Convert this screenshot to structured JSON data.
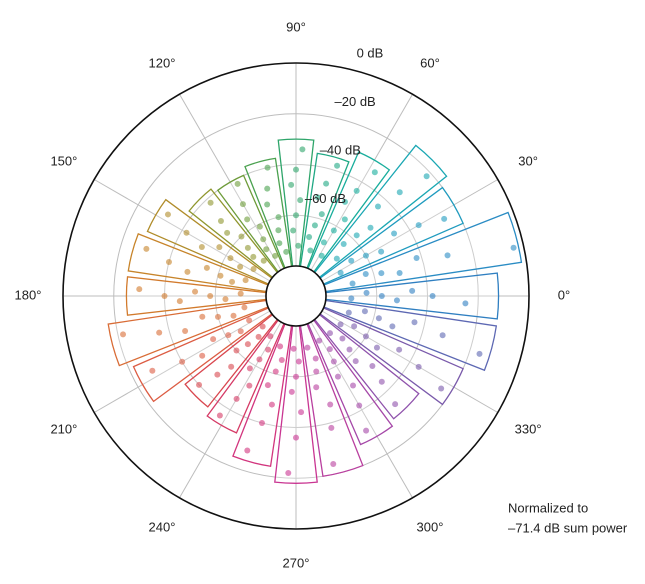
{
  "chart_data": {
    "type": "polar-bar",
    "angle_ticks": [
      {
        "value": 0,
        "label": "0°"
      },
      {
        "value": 30,
        "label": "30°"
      },
      {
        "value": 60,
        "label": "60°"
      },
      {
        "value": 90,
        "label": "90°"
      },
      {
        "value": 120,
        "label": "120°"
      },
      {
        "value": 150,
        "label": "150°"
      },
      {
        "value": 180,
        "label": "180°"
      },
      {
        "value": 210,
        "label": "210°"
      },
      {
        "value": 240,
        "label": "240°"
      },
      {
        "value": 270,
        "label": "270°"
      },
      {
        "value": 300,
        "label": "300°"
      },
      {
        "value": 330,
        "label": "330°"
      }
    ],
    "rlim": [
      -80,
      0
    ],
    "rticks": [
      {
        "value": 0,
        "label": "0 dB"
      },
      {
        "value": -20,
        "label": "–20 dB"
      },
      {
        "value": -40,
        "label": "–40 dB"
      },
      {
        "value": -60,
        "label": "–60 dB"
      }
    ],
    "sectors": {
      "angles": [
        0,
        15,
        30,
        45,
        60,
        75,
        90,
        105,
        120,
        135,
        150,
        165,
        180,
        195,
        210,
        225,
        240,
        255,
        270,
        285,
        300,
        315,
        330,
        345
      ],
      "values": [
        -12,
        -2,
        -20,
        -16,
        -30,
        -35,
        -30,
        -37,
        -40,
        -38,
        -28,
        -25,
        -25,
        -17,
        -22,
        -36,
        -33,
        -24,
        -18,
        -20,
        -28,
        -30,
        -20,
        -12
      ],
      "colors": [
        "#2f7fc1",
        "#2a8cc4",
        "#1f9bbf",
        "#1aa7b3",
        "#18ad9c",
        "#1fa884",
        "#2ea56a",
        "#4aa14f",
        "#6e9c3a",
        "#8f962e",
        "#b08c2a",
        "#c7842a",
        "#d27a2c",
        "#d96c36",
        "#dc5c43",
        "#d9474f",
        "#d53a66",
        "#d2357e",
        "#c93592",
        "#b93f9f",
        "#a548a8",
        "#8f52ac",
        "#7a5aab",
        "#5d68b3"
      ],
      "dots": [
        [
          -25,
          -38,
          -46,
          -52,
          -58,
          -64,
          -70
        ],
        [
          -4,
          -30,
          -42,
          -50,
          -57,
          -63,
          -69
        ],
        [
          -26,
          -36,
          -46,
          -54,
          -60,
          -66,
          -72
        ],
        [
          -22,
          -34,
          -44,
          -52,
          -58,
          -64,
          -70
        ],
        [
          -34,
          -44,
          -50,
          -56,
          -62,
          -68,
          -73
        ],
        [
          -38,
          -46,
          -52,
          -58,
          -63,
          -68,
          -73
        ],
        [
          -34,
          -42,
          -48,
          -54,
          -60,
          -66,
          -72
        ],
        [
          -40,
          -48,
          -54,
          -60,
          -65,
          -70,
          -74
        ],
        [
          -42,
          -50,
          -56,
          -61,
          -66,
          -70,
          -74
        ],
        [
          -42,
          -50,
          -55,
          -60,
          -65,
          -69,
          -73
        ],
        [
          -32,
          -42,
          -50,
          -56,
          -62,
          -67,
          -72
        ],
        [
          -30,
          -40,
          -48,
          -55,
          -61,
          -66,
          -71
        ],
        [
          -30,
          -40,
          -46,
          -52,
          -58,
          -64,
          -70
        ],
        [
          -22,
          -36,
          -46,
          -54,
          -60,
          -66,
          -71
        ],
        [
          -28,
          -40,
          -48,
          -55,
          -61,
          -66,
          -71
        ],
        [
          -40,
          -48,
          -54,
          -60,
          -65,
          -70,
          -74
        ],
        [
          -36,
          -45,
          -52,
          -58,
          -63,
          -68,
          -73
        ],
        [
          -28,
          -40,
          -48,
          -55,
          -61,
          -66,
          -71
        ],
        [
          -22,
          -36,
          -46,
          -54,
          -60,
          -66,
          -71
        ],
        [
          -24,
          -38,
          -47,
          -55,
          -61,
          -66,
          -71
        ],
        [
          -32,
          -42,
          -50,
          -56,
          -62,
          -67,
          -72
        ],
        [
          -34,
          -44,
          -51,
          -57,
          -62,
          -67,
          -72
        ],
        [
          -24,
          -36,
          -46,
          -54,
          -60,
          -66,
          -71
        ],
        [
          -16,
          -32,
          -44,
          -52,
          -58,
          -64,
          -70
        ]
      ]
    },
    "annotation": [
      "Normalized to",
      "–71.4 dB sum power"
    ]
  }
}
